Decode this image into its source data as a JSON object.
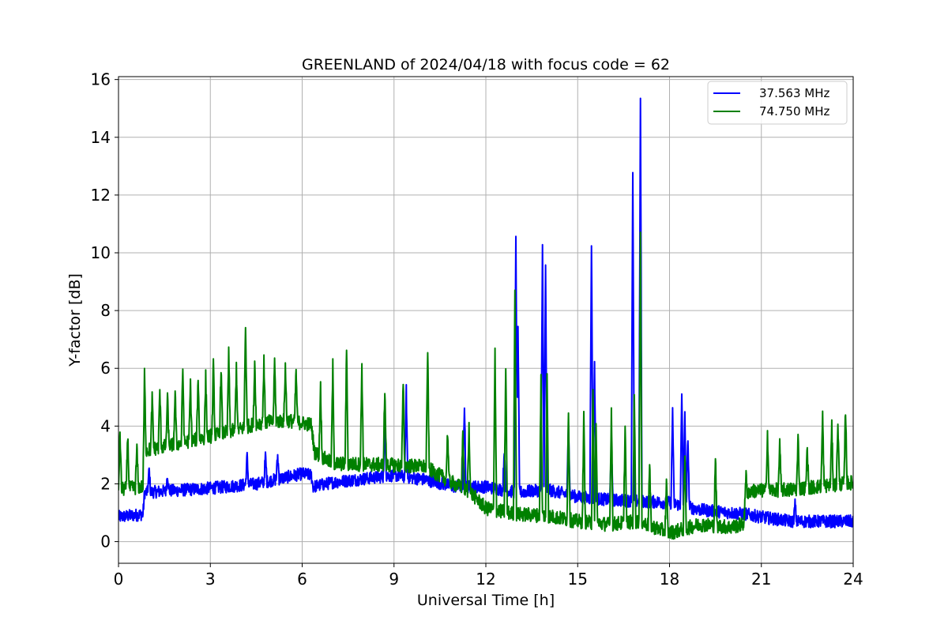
{
  "chart_data": {
    "type": "line",
    "title": "GREENLAND of 2024/04/18 with focus code = 62",
    "xlabel": "Universal Time [h]",
    "ylabel": "Y-factor [dB]",
    "xlim": [
      0,
      24
    ],
    "ylim": [
      -0.75,
      16.1
    ],
    "xticks": [
      0,
      3,
      6,
      9,
      12,
      15,
      18,
      21,
      24
    ],
    "yticks": [
      0,
      2,
      4,
      6,
      8,
      10,
      12,
      14,
      16
    ],
    "grid": true,
    "legend_position": "top-right",
    "series": [
      {
        "name": "37.563 MHz",
        "color": "#0000ff",
        "noise": 0.22,
        "baseline": [
          [
            0,
            0.85
          ],
          [
            0.8,
            0.95
          ],
          [
            0.85,
            1.7
          ],
          [
            3,
            1.85
          ],
          [
            4.5,
            2.0
          ],
          [
            6,
            2.35
          ],
          [
            6.3,
            2.3
          ],
          [
            6.35,
            1.9
          ],
          [
            7,
            2.05
          ],
          [
            9,
            2.3
          ],
          [
            10,
            2.15
          ],
          [
            11,
            1.9
          ],
          [
            12,
            1.9
          ],
          [
            13,
            1.7
          ],
          [
            14,
            1.8
          ],
          [
            15,
            1.55
          ],
          [
            16,
            1.45
          ],
          [
            17,
            1.4
          ],
          [
            18,
            1.35
          ],
          [
            19,
            1.1
          ],
          [
            20,
            1.0
          ],
          [
            20.5,
            0.95
          ],
          [
            21,
            0.85
          ],
          [
            22,
            0.7
          ],
          [
            24,
            0.7
          ]
        ],
        "spikes": [
          [
            1.0,
            0.8
          ],
          [
            1.6,
            0.6
          ],
          [
            4.2,
            1.0
          ],
          [
            4.8,
            0.9
          ],
          [
            5.2,
            0.8
          ],
          [
            8.7,
            1.9
          ],
          [
            9.4,
            3.0
          ],
          [
            11.3,
            2.9
          ],
          [
            12.6,
            1.4
          ],
          [
            12.98,
            9.0
          ],
          [
            13.05,
            5.8
          ],
          [
            13.85,
            8.5
          ],
          [
            13.95,
            7.8
          ],
          [
            14.7,
            2.6
          ],
          [
            15.45,
            8.9
          ],
          [
            15.55,
            4.8
          ],
          [
            16.1,
            1.8
          ],
          [
            16.8,
            11.3
          ],
          [
            17.05,
            13.9
          ],
          [
            18.1,
            3.3
          ],
          [
            18.4,
            3.8
          ],
          [
            18.5,
            3.3
          ],
          [
            18.6,
            2.5
          ],
          [
            22.1,
            0.6
          ]
        ]
      },
      {
        "name": "74.750 MHz",
        "color": "#008000",
        "noise": 0.25,
        "baseline": [
          [
            0,
            1.8
          ],
          [
            0.8,
            1.9
          ],
          [
            0.85,
            3.15
          ],
          [
            2,
            3.4
          ],
          [
            3,
            3.65
          ],
          [
            4,
            3.9
          ],
          [
            4.5,
            4.1
          ],
          [
            5.5,
            4.2
          ],
          [
            6.3,
            4.05
          ],
          [
            6.4,
            3.1
          ],
          [
            7,
            2.7
          ],
          [
            9,
            2.65
          ],
          [
            10,
            2.6
          ],
          [
            10.8,
            2.1
          ],
          [
            11.5,
            1.7
          ],
          [
            12,
            1.15
          ],
          [
            13,
            0.95
          ],
          [
            14,
            0.9
          ],
          [
            15,
            0.7
          ],
          [
            16,
            0.6
          ],
          [
            17,
            0.7
          ],
          [
            18,
            0.3
          ],
          [
            19,
            0.6
          ],
          [
            20,
            0.5
          ],
          [
            20.4,
            0.6
          ],
          [
            20.6,
            1.75
          ],
          [
            22,
            1.8
          ],
          [
            24,
            2.05
          ]
        ],
        "spikes": [
          [
            0.05,
            2.0
          ],
          [
            0.3,
            1.9
          ],
          [
            0.6,
            1.4
          ],
          [
            0.85,
            2.7
          ],
          [
            1.1,
            1.8
          ],
          [
            1.35,
            2.0
          ],
          [
            1.6,
            1.7
          ],
          [
            1.85,
            1.8
          ],
          [
            2.1,
            2.6
          ],
          [
            2.35,
            2.0
          ],
          [
            2.6,
            2.2
          ],
          [
            2.85,
            2.1
          ],
          [
            3.1,
            2.5
          ],
          [
            3.35,
            2.3
          ],
          [
            3.6,
            2.7
          ],
          [
            3.85,
            2.2
          ],
          [
            4.15,
            3.6
          ],
          [
            4.45,
            2.2
          ],
          [
            4.75,
            2.1
          ],
          [
            5.1,
            2.1
          ],
          [
            5.45,
            1.9
          ],
          [
            5.8,
            1.8
          ],
          [
            6.6,
            2.5
          ],
          [
            7.0,
            3.4
          ],
          [
            7.45,
            4.0
          ],
          [
            7.95,
            3.5
          ],
          [
            8.7,
            2.6
          ],
          [
            9.3,
            2.9
          ],
          [
            10.1,
            4.2
          ],
          [
            10.75,
            1.7
          ],
          [
            11.25,
            2.0
          ],
          [
            11.45,
            2.3
          ],
          [
            12.3,
            5.5
          ],
          [
            12.65,
            5.1
          ],
          [
            12.95,
            7.9
          ],
          [
            13.8,
            4.7
          ],
          [
            14.0,
            4.9
          ],
          [
            14.7,
            3.8
          ],
          [
            15.2,
            3.6
          ],
          [
            15.5,
            4.8
          ],
          [
            15.6,
            3.3
          ],
          [
            16.1,
            4.0
          ],
          [
            16.55,
            3.4
          ],
          [
            16.85,
            4.4
          ],
          [
            17.05,
            9.8
          ],
          [
            17.35,
            2.1
          ],
          [
            17.9,
            1.7
          ],
          [
            18.5,
            2.6
          ],
          [
            19.5,
            2.4
          ],
          [
            20.5,
            1.4
          ],
          [
            21.2,
            2.0
          ],
          [
            21.6,
            1.6
          ],
          [
            22.2,
            1.8
          ],
          [
            22.5,
            1.4
          ],
          [
            23.0,
            2.5
          ],
          [
            23.3,
            2.0
          ],
          [
            23.5,
            2.2
          ],
          [
            23.75,
            2.6
          ]
        ]
      }
    ]
  }
}
